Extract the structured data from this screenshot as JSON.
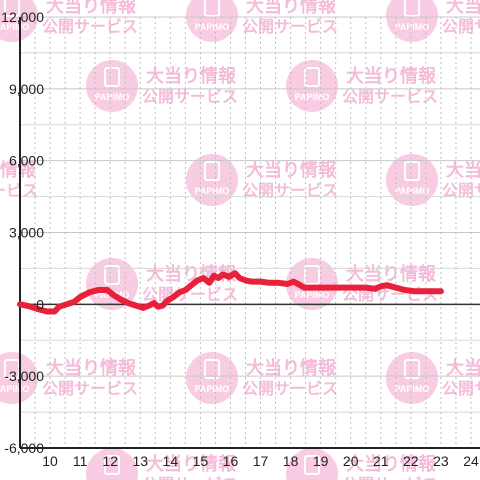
{
  "watermark": {
    "line1": "大当り情報",
    "line2": "公開サービス",
    "logo": "PAPIMO",
    "color": "#f2a6cd"
  },
  "chart_data": {
    "type": "line",
    "title": "",
    "xlabel": "",
    "ylabel": "",
    "xlim": [
      9,
      24.3
    ],
    "ylim": [
      -6000,
      12000
    ],
    "y_ticks": [
      12000,
      9000,
      6000,
      3000,
      0,
      -3000,
      -6000
    ],
    "y_tick_labels": [
      "12,000",
      "9,000",
      "6,000",
      "3,000",
      "0",
      "-3,000",
      "-6,000"
    ],
    "x_ticks": [
      10,
      11,
      12,
      13,
      14,
      15,
      16,
      17,
      18,
      19,
      20,
      21,
      22,
      23,
      24
    ],
    "x_tick_labels": [
      "10",
      "11",
      "12",
      "13",
      "14",
      "15",
      "16",
      "17",
      "18",
      "19",
      "20",
      "21",
      "22",
      "23",
      "24"
    ],
    "grid": true,
    "line_color": "#e8203a",
    "series": [
      {
        "x": [
          9,
          9.3,
          9.6,
          9.9,
          10.15,
          10.3,
          10.55,
          10.8,
          11.0,
          11.3,
          11.6,
          11.9,
          12.1,
          12.35,
          12.6,
          12.85,
          13.1,
          13.3,
          13.45,
          13.6,
          13.75,
          13.9,
          14.1,
          14.3,
          14.5,
          14.7,
          14.9,
          15.1,
          15.3,
          15.45,
          15.6,
          15.75,
          15.95,
          16.15,
          16.3,
          16.5,
          16.7,
          17.0,
          17.3,
          17.6,
          17.9,
          18.1,
          18.25,
          18.45,
          18.7,
          19.0,
          19.5,
          20.0,
          20.5,
          20.8,
          21.0,
          21.2,
          21.5,
          21.8,
          22.1,
          22.5,
          23.0
        ],
        "y": [
          0,
          -80,
          -200,
          -300,
          -300,
          -100,
          0,
          100,
          300,
          500,
          600,
          600,
          400,
          200,
          50,
          -50,
          -150,
          -50,
          50,
          -100,
          -50,
          150,
          300,
          500,
          600,
          800,
          1000,
          1100,
          900,
          1200,
          1100,
          1250,
          1150,
          1300,
          1100,
          1000,
          950,
          950,
          900,
          900,
          850,
          950,
          850,
          700,
          700,
          700,
          700,
          700,
          700,
          650,
          750,
          800,
          700,
          600,
          550,
          550,
          550
        ]
      }
    ]
  }
}
